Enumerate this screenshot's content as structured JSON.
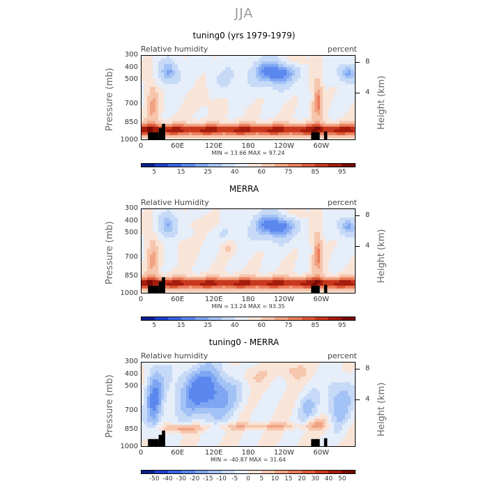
{
  "figure_title": "JJA",
  "chart_data": [
    {
      "type": "heatmap",
      "title": "tuning0 (yrs 1979-1979)",
      "variable": "Relative humidity",
      "units": "percent",
      "ylabel": "Pressure (mb)",
      "y2label": "Height (km)",
      "y_ticks": [
        "300",
        "400",
        "500",
        "700",
        "850",
        "1000"
      ],
      "y2_ticks": [
        "8",
        "4"
      ],
      "x_ticks": [
        "0",
        "60E",
        "120E",
        "180",
        "120W",
        "60W"
      ],
      "min_label": "MIN =",
      "min": "13.66",
      "max_label": "MAX =",
      "max": "97.24",
      "colorbar_labels": [
        "5",
        "15",
        "25",
        "40",
        "60",
        "75",
        "85",
        "95"
      ],
      "scale": "rh"
    },
    {
      "type": "heatmap",
      "title": "MERRA",
      "variable": "Relative Humidity",
      "units": "percent",
      "ylabel": "Pressure (mb)",
      "y2label": "Height (km)",
      "y_ticks": [
        "300",
        "400",
        "500",
        "700",
        "850",
        "1000"
      ],
      "y2_ticks": [
        "8",
        "4"
      ],
      "x_ticks": [
        "0",
        "60E",
        "120E",
        "180",
        "120W",
        "60W"
      ],
      "min_label": "MIN =",
      "min": "13.24",
      "max_label": "MAX =",
      "max": "93.35",
      "colorbar_labels": [
        "5",
        "15",
        "25",
        "40",
        "60",
        "75",
        "85",
        "95"
      ],
      "scale": "rh"
    },
    {
      "type": "heatmap",
      "title": "tuning0 - MERRA",
      "variable": "Relative humidity",
      "units": "percent",
      "ylabel": "Pressure (mb)",
      "y2label": "Height (km)",
      "y_ticks": [
        "300",
        "400",
        "500",
        "700",
        "850",
        "1000"
      ],
      "y2_ticks": [
        "8",
        "4"
      ],
      "x_ticks": [
        "0",
        "60E",
        "120E",
        "180",
        "120W",
        "60W"
      ],
      "min_label": "MIN =",
      "min": "-40.87",
      "max_label": "MAX =",
      "max": "31.64",
      "colorbar_labels": [
        "-50",
        "-40",
        "-30",
        "-20",
        "-15",
        "-10",
        "-5",
        "0",
        "5",
        "10",
        "15",
        "20",
        "30",
        "40",
        "50"
      ],
      "scale": "diff"
    }
  ],
  "colors": {
    "rh_scale": [
      "#0b1f8f",
      "#1f3fcf",
      "#3a64e6",
      "#5b87ee",
      "#7fa6f2",
      "#a3c2f5",
      "#c6daf7",
      "#e6eefa",
      "#f9e4d8",
      "#f6c6ad",
      "#f2a383",
      "#ec7f5d",
      "#df5a39",
      "#c8381d",
      "#a51c0c",
      "#7a0a03"
    ],
    "diff_scale": [
      "#0b1f8f",
      "#1f3fcf",
      "#3a64e6",
      "#5b87ee",
      "#7fa6f2",
      "#a3c2f5",
      "#c6daf7",
      "#e6eefa",
      "#f9e4d8",
      "#f6c6ad",
      "#f2a383",
      "#ec7f5d",
      "#df5a39",
      "#c8381d",
      "#a51c0c",
      "#7a0a03"
    ],
    "topography": "#000000"
  }
}
